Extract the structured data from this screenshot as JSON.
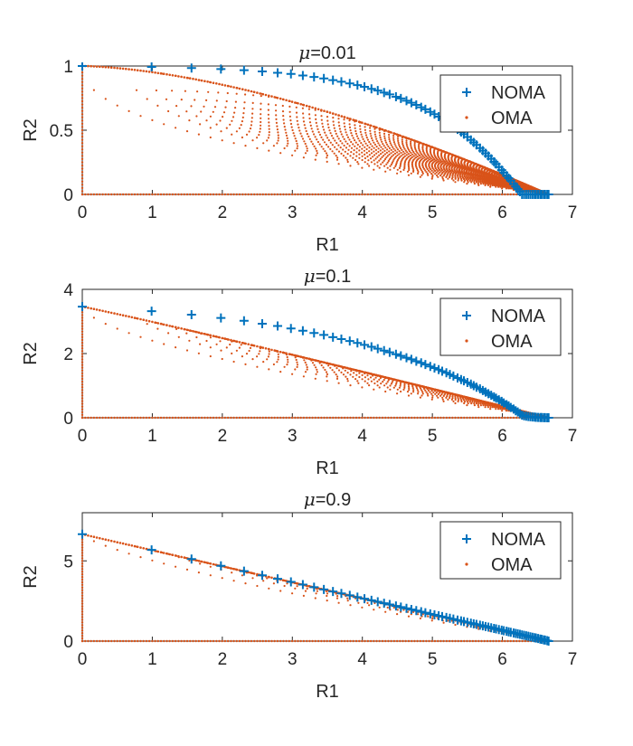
{
  "chart_data": [
    {
      "type": "scatter",
      "title_prefix": "μ",
      "title_value": "=0.01",
      "xlabel": "R1",
      "ylabel": "R2",
      "xlim": [
        0,
        7
      ],
      "ylim": [
        0,
        1
      ],
      "xticks": [
        "0",
        "1",
        "2",
        "3",
        "4",
        "5",
        "6",
        "7"
      ],
      "yticks": [
        "0",
        "0.5",
        "1"
      ],
      "ytick_values": [
        0,
        0.5,
        1
      ],
      "legend_position": "top-right",
      "noma_marker": "+",
      "oma_marker": "dot",
      "oma_envelope_exponent": 1.6,
      "oma_curve_exponent": 2.2,
      "series": [
        {
          "name": "NOMA",
          "color": "#0072BD",
          "x": [
            0,
            0.99,
            1.56,
            1.98,
            2.31,
            2.57,
            2.79,
            2.98,
            3.15,
            3.31,
            3.45,
            3.58,
            3.7,
            3.82,
            3.93,
            4.03,
            4.13,
            4.22,
            4.31,
            4.39,
            4.48,
            4.55,
            4.63,
            4.7,
            4.77,
            4.84,
            4.9,
            4.97,
            5.03,
            5.09,
            5.14,
            5.2,
            5.25,
            5.3,
            5.36,
            5.41,
            5.45,
            5.5,
            5.55,
            5.59,
            5.63,
            5.68,
            5.72,
            5.76,
            5.8,
            5.84,
            5.88,
            5.91,
            5.95,
            5.99,
            6.02,
            6.06,
            6.09,
            6.12,
            6.16,
            6.19,
            6.22,
            6.25,
            6.28,
            6.31,
            6.34,
            6.37,
            6.4,
            6.43,
            6.46,
            6.48,
            6.51,
            6.54,
            6.56,
            6.59,
            6.61,
            6.64,
            6.66
          ],
          "y": [
            1.0,
            0.993,
            0.984,
            0.976,
            0.967,
            0.958,
            0.947,
            0.938,
            0.926,
            0.915,
            0.903,
            0.89,
            0.878,
            0.864,
            0.851,
            0.838,
            0.822,
            0.809,
            0.793,
            0.779,
            0.761,
            0.747,
            0.73,
            0.714,
            0.697,
            0.679,
            0.663,
            0.643,
            0.625,
            0.606,
            0.589,
            0.567,
            0.549,
            0.53,
            0.506,
            0.486,
            0.469,
            0.447,
            0.424,
            0.405,
            0.386,
            0.361,
            0.341,
            0.32,
            0.299,
            0.277,
            0.254,
            0.237,
            0.213,
            0.189,
            0.17,
            0.146,
            0.127,
            0.107,
            0.082,
            0.062,
            0.042,
            0.021,
            0.0,
            0.0,
            0.0,
            0.0,
            0.0,
            0.0,
            0.0,
            0.0,
            0.0,
            0.0,
            0.0,
            0.0,
            0.0,
            0.0,
            0.0
          ]
        },
        {
          "name": "OMA",
          "color": "#D95319",
          "x_max": 6.66,
          "y_max": 1.0
        }
      ]
    },
    {
      "type": "scatter",
      "title_prefix": "μ",
      "title_value": "=0.1",
      "xlabel": "R1",
      "ylabel": "R2",
      "xlim": [
        0,
        7
      ],
      "ylim": [
        0,
        4
      ],
      "xticks": [
        "0",
        "1",
        "2",
        "3",
        "4",
        "5",
        "6",
        "7"
      ],
      "yticks": [
        "0",
        "2",
        "4"
      ],
      "ytick_values": [
        0,
        2,
        4
      ],
      "legend_position": "top-right",
      "noma_marker": "+",
      "oma_marker": "dot",
      "oma_envelope_exponent": 1.05,
      "oma_curve_exponent": 1.6,
      "series": [
        {
          "name": "NOMA",
          "color": "#0072BD",
          "x": [
            0,
            0.99,
            1.56,
            1.98,
            2.31,
            2.57,
            2.79,
            2.98,
            3.15,
            3.31,
            3.45,
            3.58,
            3.7,
            3.82,
            3.93,
            4.03,
            4.13,
            4.22,
            4.31,
            4.39,
            4.48,
            4.55,
            4.63,
            4.7,
            4.77,
            4.84,
            4.9,
            4.97,
            5.03,
            5.09,
            5.14,
            5.2,
            5.25,
            5.3,
            5.36,
            5.41,
            5.45,
            5.5,
            5.55,
            5.59,
            5.63,
            5.68,
            5.72,
            5.76,
            5.8,
            5.84,
            5.88,
            5.91,
            5.95,
            5.99,
            6.02,
            6.06,
            6.09,
            6.12,
            6.16,
            6.19,
            6.22,
            6.25,
            6.28,
            6.31,
            6.34,
            6.37,
            6.4,
            6.43,
            6.46,
            6.48,
            6.51,
            6.54,
            6.56,
            6.59,
            6.61,
            6.64,
            6.66
          ],
          "y": [
            3.46,
            3.32,
            3.21,
            3.11,
            3.02,
            2.93,
            2.86,
            2.78,
            2.71,
            2.64,
            2.58,
            2.51,
            2.45,
            2.39,
            2.33,
            2.27,
            2.21,
            2.15,
            2.09,
            2.04,
            1.98,
            1.93,
            1.87,
            1.82,
            1.76,
            1.71,
            1.66,
            1.6,
            1.55,
            1.5,
            1.45,
            1.4,
            1.35,
            1.3,
            1.24,
            1.19,
            1.15,
            1.1,
            1.05,
            1.0,
            0.95,
            0.9,
            0.85,
            0.8,
            0.75,
            0.7,
            0.65,
            0.61,
            0.56,
            0.51,
            0.46,
            0.41,
            0.37,
            0.32,
            0.27,
            0.22,
            0.18,
            0.13,
            0.08,
            0.06,
            0.05,
            0.04,
            0.03,
            0.025,
            0.02,
            0.015,
            0.01,
            0.008,
            0.006,
            0.004,
            0.003,
            0.001,
            0.0
          ]
        },
        {
          "name": "OMA",
          "color": "#D95319",
          "x_max": 6.66,
          "y_max": 3.46
        }
      ]
    },
    {
      "type": "scatter",
      "title_prefix": "μ",
      "title_value": "=0.9",
      "xlabel": "R1",
      "ylabel": "R2",
      "xlim": [
        0,
        7
      ],
      "ylim": [
        0,
        8
      ],
      "xticks": [
        "0",
        "1",
        "2",
        "3",
        "4",
        "5",
        "6",
        "7"
      ],
      "yticks": [
        "0",
        "5"
      ],
      "ytick_values": [
        0,
        5
      ],
      "legend_position": "top-right",
      "noma_marker": "+",
      "oma_marker": "dot",
      "oma_envelope_exponent": 1.0,
      "oma_curve_exponent": 1.35,
      "series": [
        {
          "name": "NOMA",
          "color": "#0072BD",
          "x": [
            0,
            0.99,
            1.56,
            1.98,
            2.31,
            2.57,
            2.79,
            2.98,
            3.15,
            3.31,
            3.45,
            3.58,
            3.7,
            3.82,
            3.93,
            4.03,
            4.13,
            4.22,
            4.31,
            4.39,
            4.48,
            4.55,
            4.63,
            4.7,
            4.77,
            4.84,
            4.9,
            4.97,
            5.03,
            5.09,
            5.14,
            5.2,
            5.25,
            5.3,
            5.36,
            5.41,
            5.45,
            5.5,
            5.55,
            5.59,
            5.63,
            5.68,
            5.72,
            5.76,
            5.8,
            5.84,
            5.88,
            5.91,
            5.95,
            5.99,
            6.02,
            6.06,
            6.09,
            6.12,
            6.16,
            6.19,
            6.22,
            6.25,
            6.28,
            6.31,
            6.34,
            6.37,
            6.4,
            6.43,
            6.46,
            6.48,
            6.51,
            6.54,
            6.56,
            6.59,
            6.61,
            6.64,
            6.66
          ],
          "y": [
            6.66,
            5.68,
            5.11,
            4.69,
            4.36,
            4.1,
            3.88,
            3.69,
            3.52,
            3.36,
            3.22,
            3.09,
            2.97,
            2.85,
            2.74,
            2.64,
            2.54,
            2.45,
            2.36,
            2.28,
            2.19,
            2.12,
            2.04,
            1.97,
            1.9,
            1.83,
            1.77,
            1.7,
            1.64,
            1.58,
            1.53,
            1.47,
            1.42,
            1.37,
            1.31,
            1.26,
            1.22,
            1.17,
            1.12,
            1.08,
            1.04,
            0.99,
            0.95,
            0.91,
            0.87,
            0.83,
            0.79,
            0.76,
            0.72,
            0.68,
            0.65,
            0.61,
            0.58,
            0.55,
            0.51,
            0.48,
            0.45,
            0.42,
            0.39,
            0.36,
            0.33,
            0.3,
            0.27,
            0.24,
            0.21,
            0.19,
            0.16,
            0.13,
            0.11,
            0.08,
            0.06,
            0.03,
            0.0
          ]
        },
        {
          "name": "OMA",
          "color": "#D95319",
          "x_max": 6.66,
          "y_max": 6.66
        }
      ]
    }
  ]
}
